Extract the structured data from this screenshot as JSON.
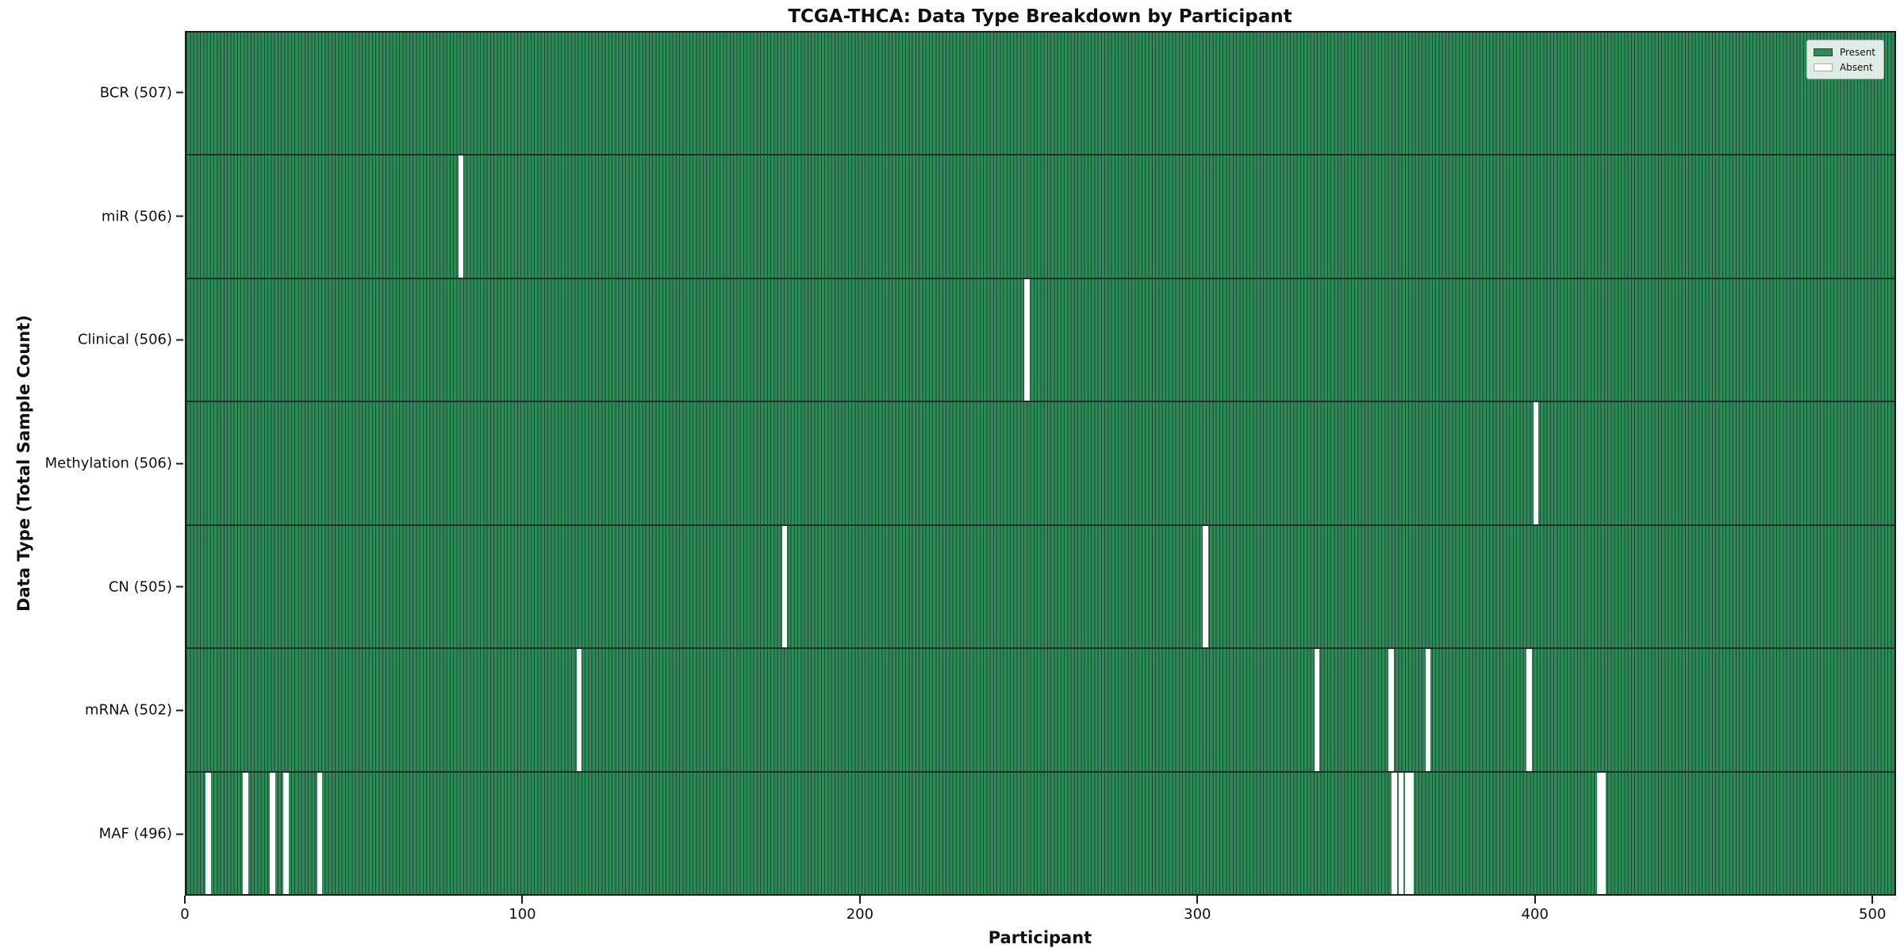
{
  "chart_data": {
    "type": "heatmap",
    "title": "TCGA-THCA: Data Type Breakdown by Participant",
    "xlabel": "Participant",
    "ylabel": "Data Type (Total Sample Count)",
    "n_participants": 507,
    "xlim": [
      0,
      507
    ],
    "x_ticks": [
      0,
      100,
      200,
      300,
      400,
      500
    ],
    "grid": false,
    "legend": {
      "position": "upper right",
      "entries": [
        {
          "label": "Present",
          "color": "#2e8b57"
        },
        {
          "label": "Absent",
          "color": "#ffffff"
        }
      ]
    },
    "colors": {
      "present": "#2e8b57",
      "bar_edge": "#1e4a33",
      "absent": "#ffffff",
      "spine": "#1d1d1d"
    },
    "rows": [
      {
        "label": "BCR (507)",
        "data_type": "BCR",
        "present_count": 507,
        "absent_participants": []
      },
      {
        "label": "miR (506)",
        "data_type": "miR",
        "present_count": 506,
        "absent_participants": [
          81
        ]
      },
      {
        "label": "Clinical (506)",
        "data_type": "Clinical",
        "present_count": 506,
        "absent_participants": [
          249
        ]
      },
      {
        "label": "Methylation (506)",
        "data_type": "Methylation",
        "present_count": 506,
        "absent_participants": [
          400
        ]
      },
      {
        "label": "CN (505)",
        "data_type": "CN",
        "present_count": 505,
        "absent_participants": [
          177,
          302
        ]
      },
      {
        "label": "mRNA (502)",
        "data_type": "mRNA",
        "present_count": 502,
        "absent_participants": [
          116,
          335,
          357,
          368,
          398
        ]
      },
      {
        "label": "MAF (496)",
        "data_type": "MAF",
        "present_count": 496,
        "absent_participants": [
          6,
          17,
          25,
          29,
          39,
          358,
          360,
          362,
          363,
          419,
          420
        ]
      }
    ]
  }
}
